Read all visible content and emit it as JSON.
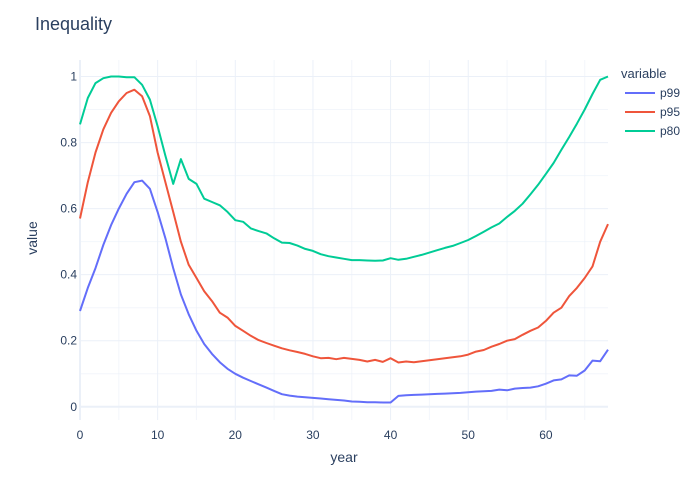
{
  "chart_data": {
    "type": "line",
    "title": "Inequality",
    "xlabel": "year",
    "ylabel": "value",
    "xlim": [
      0,
      68
    ],
    "ylim": [
      -0.04,
      1.05
    ],
    "xticks": [
      0,
      10,
      20,
      30,
      40,
      50,
      60
    ],
    "yticks": [
      0,
      0.2,
      0.4,
      0.6,
      0.8,
      1
    ],
    "ytick_labels": [
      "0",
      "0.2",
      "0.4",
      "0.6",
      "0.8",
      "1"
    ],
    "grid": true,
    "legend": {
      "title": "variable",
      "placement": "top-right"
    },
    "x": [
      0,
      1,
      2,
      3,
      4,
      5,
      6,
      7,
      8,
      9,
      10,
      11,
      12,
      13,
      14,
      15,
      16,
      17,
      18,
      19,
      20,
      21,
      22,
      23,
      24,
      25,
      26,
      27,
      28,
      29,
      30,
      31,
      32,
      33,
      34,
      35,
      36,
      37,
      38,
      39,
      40,
      41,
      42,
      43,
      44,
      45,
      46,
      47,
      48,
      49,
      50,
      51,
      52,
      53,
      54,
      55,
      56,
      57,
      58,
      59,
      60,
      61,
      62,
      63,
      64,
      65,
      66,
      67,
      68
    ],
    "series": [
      {
        "name": "p99",
        "color": "#636efa",
        "values": [
          0.29,
          0.36,
          0.42,
          0.49,
          0.55,
          0.6,
          0.645,
          0.68,
          0.685,
          0.66,
          0.59,
          0.51,
          0.42,
          0.34,
          0.28,
          0.23,
          0.19,
          0.16,
          0.135,
          0.115,
          0.1,
          0.088,
          0.078,
          0.068,
          0.058,
          0.048,
          0.038,
          0.034,
          0.031,
          0.029,
          0.027,
          0.025,
          0.023,
          0.021,
          0.019,
          0.016,
          0.015,
          0.014,
          0.014,
          0.013,
          0.013,
          0.033,
          0.035,
          0.036,
          0.037,
          0.038,
          0.039,
          0.04,
          0.041,
          0.042,
          0.044,
          0.046,
          0.047,
          0.048,
          0.052,
          0.05,
          0.055,
          0.057,
          0.058,
          0.062,
          0.07,
          0.08,
          0.083,
          0.095,
          0.094,
          0.11,
          0.14,
          0.138,
          0.173
        ]
      },
      {
        "name": "p95",
        "color": "#ef553b",
        "values": [
          0.57,
          0.68,
          0.77,
          0.84,
          0.89,
          0.925,
          0.95,
          0.96,
          0.94,
          0.88,
          0.77,
          0.68,
          0.59,
          0.5,
          0.43,
          0.39,
          0.35,
          0.32,
          0.285,
          0.27,
          0.245,
          0.23,
          0.215,
          0.202,
          0.193,
          0.185,
          0.177,
          0.171,
          0.166,
          0.16,
          0.153,
          0.147,
          0.148,
          0.144,
          0.148,
          0.145,
          0.142,
          0.137,
          0.142,
          0.136,
          0.147,
          0.134,
          0.137,
          0.135,
          0.138,
          0.141,
          0.144,
          0.147,
          0.15,
          0.153,
          0.158,
          0.167,
          0.172,
          0.182,
          0.19,
          0.2,
          0.205,
          0.218,
          0.23,
          0.24,
          0.26,
          0.285,
          0.3,
          0.335,
          0.36,
          0.39,
          0.425,
          0.5,
          0.553
        ]
      },
      {
        "name": "p80",
        "color": "#00cc96",
        "values": [
          0.855,
          0.935,
          0.98,
          0.995,
          1.0,
          1.0,
          0.998,
          0.998,
          0.975,
          0.93,
          0.85,
          0.76,
          0.675,
          0.75,
          0.69,
          0.675,
          0.63,
          0.62,
          0.61,
          0.59,
          0.565,
          0.56,
          0.54,
          0.532,
          0.525,
          0.51,
          0.497,
          0.496,
          0.488,
          0.478,
          0.472,
          0.462,
          0.456,
          0.452,
          0.448,
          0.444,
          0.444,
          0.443,
          0.442,
          0.443,
          0.45,
          0.445,
          0.448,
          0.454,
          0.46,
          0.467,
          0.474,
          0.481,
          0.487,
          0.496,
          0.505,
          0.517,
          0.53,
          0.543,
          0.555,
          0.575,
          0.593,
          0.615,
          0.643,
          0.672,
          0.705,
          0.738,
          0.778,
          0.817,
          0.857,
          0.9,
          0.947,
          0.99,
          1.0
        ]
      }
    ]
  }
}
